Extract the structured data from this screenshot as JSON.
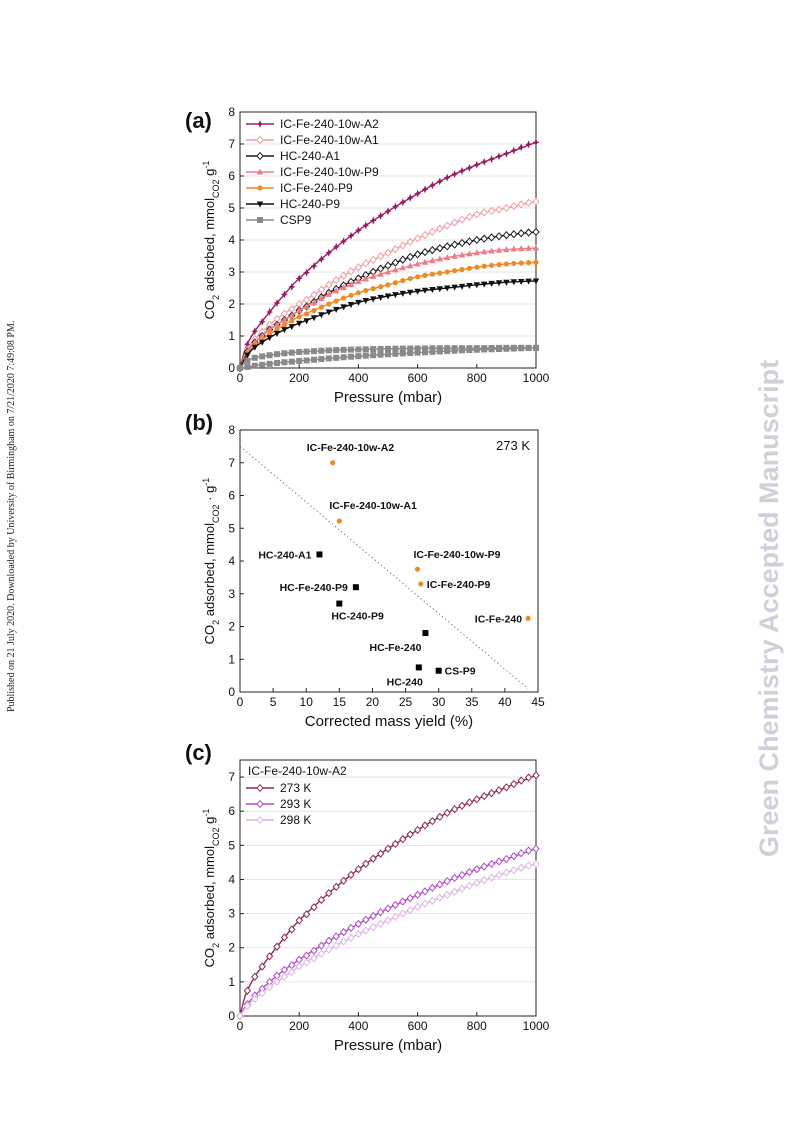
{
  "margin_text": {
    "published_note": "Published on 21 July 2020. Downloaded by University of Birmingham on 7/21/2020 7:49:08 PM.",
    "watermark": "Green Chemistry Accepted Manuscript"
  },
  "chart_data": [
    {
      "panel_label": "(a)",
      "type": "line",
      "xlabel": "Pressure (mbar)",
      "ylabel": "CO2 adsorbed, mmolCO2 g-1",
      "xlim": [
        0,
        1000
      ],
      "ylim": [
        0,
        8
      ],
      "xticks": [
        0,
        200,
        400,
        600,
        800,
        1000
      ],
      "yticks": [
        0,
        1,
        2,
        3,
        4,
        5,
        6,
        7,
        8
      ],
      "legend_position": "top-left",
      "grid": "horizontal",
      "x": [
        0,
        20,
        50,
        100,
        150,
        200,
        300,
        400,
        500,
        600,
        700,
        800,
        900,
        1000
      ],
      "series": [
        {
          "name": "IC-Fe-240-10w-A2",
          "color": "#9b1b63",
          "marker": "star",
          "values": [
            0,
            0.65,
            1.15,
            1.75,
            2.3,
            2.8,
            3.6,
            4.3,
            4.9,
            5.45,
            5.95,
            6.35,
            6.7,
            7.05
          ]
        },
        {
          "name": "IC-Fe-240-10w-A1",
          "color": "#eda0a5",
          "marker": "diamond-open",
          "values": [
            0,
            0.5,
            0.9,
            1.35,
            1.7,
            2.0,
            2.6,
            3.15,
            3.6,
            4.05,
            4.45,
            4.8,
            5.0,
            5.2
          ]
        },
        {
          "name": "HC-240-A1",
          "color": "#1a1a1a",
          "marker": "diamond-open",
          "values": [
            0,
            0.45,
            0.8,
            1.2,
            1.5,
            1.8,
            2.35,
            2.8,
            3.2,
            3.55,
            3.8,
            4.0,
            4.15,
            4.25
          ]
        },
        {
          "name": "IC-Fe-240-10w-P9",
          "color": "#f07c86",
          "marker": "triangle",
          "values": [
            0,
            0.45,
            0.8,
            1.2,
            1.5,
            1.8,
            2.3,
            2.7,
            3.0,
            3.25,
            3.45,
            3.6,
            3.7,
            3.75
          ]
        },
        {
          "name": "IC-Fe-240-P9",
          "color": "#f08a24",
          "marker": "circle",
          "values": [
            0,
            0.4,
            0.7,
            1.05,
            1.35,
            1.6,
            2.0,
            2.35,
            2.6,
            2.85,
            3.0,
            3.15,
            3.25,
            3.3
          ]
        },
        {
          "name": "HC-240-P9",
          "color": "#111111",
          "marker": "triangle-down",
          "values": [
            0,
            0.35,
            0.65,
            0.95,
            1.2,
            1.4,
            1.75,
            2.05,
            2.25,
            2.4,
            2.5,
            2.6,
            2.68,
            2.72
          ]
        },
        {
          "name": "CSP9",
          "color": "#8a8a8a",
          "marker": "square",
          "values": [
            0,
            0.2,
            0.32,
            0.4,
            0.46,
            0.5,
            0.55,
            0.58,
            0.6,
            0.61,
            0.62,
            0.62,
            0.63,
            0.63
          ]
        }
      ],
      "extra_lines": [
        {
          "series": "CSP9",
          "color": "#8a8a8a",
          "values": [
            0,
            0.03,
            0.07,
            0.13,
            0.18,
            0.22,
            0.3,
            0.37,
            0.43,
            0.48,
            0.53,
            0.57,
            0.6,
            0.63
          ]
        }
      ]
    },
    {
      "panel_label": "(b)",
      "type": "scatter",
      "xlabel": "Corrected mass yield (%)",
      "ylabel": "CO2 adsorbed, mmolCO2 · g-1",
      "xlim": [
        0,
        45
      ],
      "ylim": [
        0,
        8
      ],
      "xticks": [
        0,
        5,
        10,
        15,
        20,
        25,
        30,
        35,
        40,
        45
      ],
      "yticks": [
        0,
        1,
        2,
        3,
        4,
        5,
        6,
        7,
        8
      ],
      "annotation": "273 K",
      "trendline": [
        [
          0,
          7.5
        ],
        [
          43.5,
          0.1
        ]
      ],
      "points": [
        {
          "label": "IC-Fe-240-10w-A2",
          "x": 14.0,
          "y": 7.0,
          "color": "#f08a24",
          "shape": "circle"
        },
        {
          "label": "IC-Fe-240-10w-A1",
          "x": 15.0,
          "y": 5.22,
          "color": "#f08a24",
          "shape": "circle"
        },
        {
          "label": "HC-240-A1",
          "x": 12.0,
          "y": 4.2,
          "color": "#000000",
          "shape": "square"
        },
        {
          "label": "HC-Fe-240-P9",
          "x": 17.5,
          "y": 3.2,
          "color": "#000000",
          "shape": "square"
        },
        {
          "label": "HC-240-P9",
          "x": 15.0,
          "y": 2.7,
          "color": "#000000",
          "shape": "square"
        },
        {
          "label": "IC-Fe-240-10w-P9",
          "x": 26.8,
          "y": 3.75,
          "color": "#f08a24",
          "shape": "circle"
        },
        {
          "label": "IC-Fe-240-P9",
          "x": 27.3,
          "y": 3.3,
          "color": "#f08a24",
          "shape": "circle"
        },
        {
          "label": "IC-Fe-240",
          "x": 43.5,
          "y": 2.25,
          "color": "#f08a24",
          "shape": "circle"
        },
        {
          "label": "HC-Fe-240",
          "x": 28.0,
          "y": 1.8,
          "color": "#000000",
          "shape": "square"
        },
        {
          "label": "HC-240",
          "x": 27.0,
          "y": 0.75,
          "color": "#000000",
          "shape": "square"
        },
        {
          "label": "CS-P9",
          "x": 30.0,
          "y": 0.65,
          "color": "#000000",
          "shape": "square"
        }
      ]
    },
    {
      "panel_label": "(c)",
      "type": "line",
      "xlabel": "Pressure (mbar)",
      "ylabel": "CO2 adsorbed, mmolCO2 g-1",
      "xlim": [
        0,
        1000
      ],
      "ylim": [
        0,
        7.5
      ],
      "xticks": [
        0,
        200,
        400,
        600,
        800,
        1000
      ],
      "yticks": [
        0,
        1,
        2,
        3,
        4,
        5,
        6,
        7
      ],
      "legend_title": "IC-Fe-240-10w-A2",
      "legend_position": "top-left",
      "grid": "horizontal",
      "x": [
        0,
        20,
        50,
        100,
        150,
        200,
        300,
        400,
        500,
        600,
        700,
        800,
        900,
        1000
      ],
      "series": [
        {
          "name": "273 K",
          "color": "#8b2a55",
          "marker": "diamond-open",
          "values": [
            0,
            0.65,
            1.15,
            1.75,
            2.3,
            2.8,
            3.6,
            4.3,
            4.9,
            5.45,
            5.95,
            6.35,
            6.7,
            7.05
          ]
        },
        {
          "name": "293 K",
          "color": "#b04ac8",
          "marker": "diamond-open",
          "values": [
            0,
            0.3,
            0.6,
            1.0,
            1.35,
            1.65,
            2.2,
            2.7,
            3.15,
            3.55,
            3.95,
            4.3,
            4.6,
            4.9
          ]
        },
        {
          "name": "298 K",
          "color": "#e0b4e6",
          "marker": "diamond-open",
          "values": [
            0,
            0.25,
            0.5,
            0.85,
            1.15,
            1.45,
            1.95,
            2.4,
            2.8,
            3.2,
            3.55,
            3.9,
            4.2,
            4.45
          ]
        }
      ]
    }
  ]
}
